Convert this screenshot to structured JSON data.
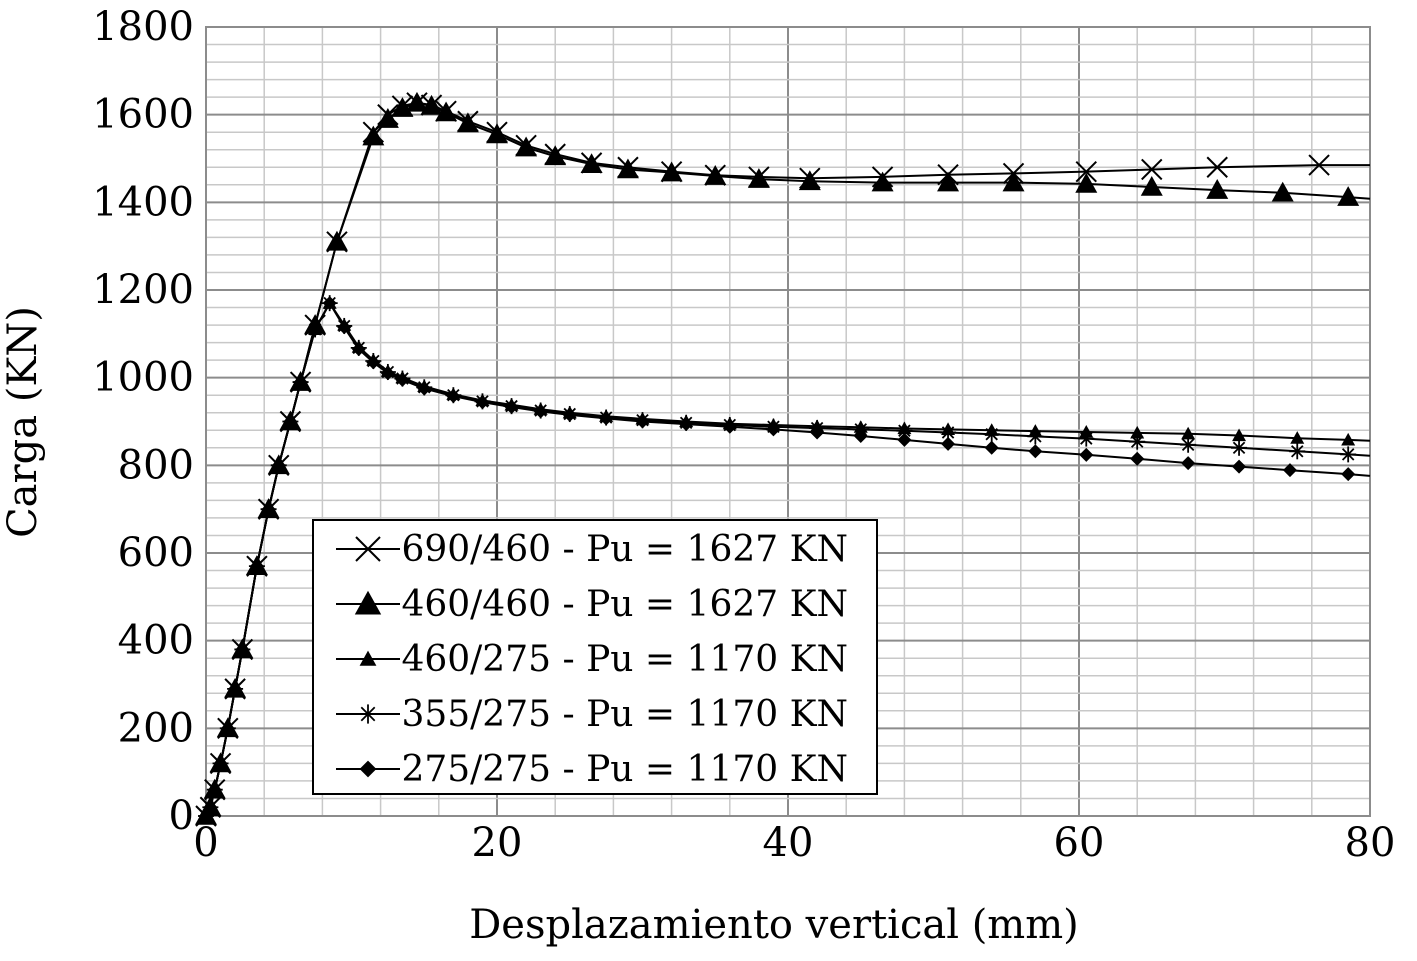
{
  "chart_data": {
    "type": "line",
    "title": "",
    "xlabel": "Desplazamiento vertical (mm)",
    "ylabel": "Carga (KN)",
    "xlim": [
      0,
      80
    ],
    "ylim": [
      0,
      1800
    ],
    "xticks": [
      0,
      20,
      40,
      60,
      80
    ],
    "yticks": [
      0,
      200,
      400,
      600,
      800,
      1000,
      1200,
      1400,
      1600,
      1800
    ],
    "grid": true,
    "legend_position": "bottom-left",
    "colors": {
      "line": "#000000",
      "grid_major": "#8c8c8c",
      "grid_minor": "#c8c8c8"
    },
    "series": [
      {
        "name": "690/460 - Pu = 1627 KN",
        "marker": "x",
        "points": [
          [
            0,
            0
          ],
          [
            0.3,
            20
          ],
          [
            0.6,
            60
          ],
          [
            1.0,
            120
          ],
          [
            1.5,
            200
          ],
          [
            2.0,
            290
          ],
          [
            2.5,
            380
          ],
          [
            3.5,
            570
          ],
          [
            4.3,
            700
          ],
          [
            5.0,
            800
          ],
          [
            5.8,
            900
          ],
          [
            6.5,
            990
          ],
          [
            7.5,
            1120
          ],
          [
            9.0,
            1310
          ],
          [
            11.5,
            1560
          ],
          [
            12.5,
            1600
          ],
          [
            13.5,
            1620
          ],
          [
            14.5,
            1627
          ],
          [
            15.5,
            1622
          ],
          [
            16.5,
            1608
          ],
          [
            18.0,
            1585
          ],
          [
            20.0,
            1560
          ],
          [
            22.0,
            1530
          ],
          [
            24.0,
            1510
          ],
          [
            26.5,
            1490
          ],
          [
            29.0,
            1480
          ],
          [
            32.0,
            1470
          ],
          [
            35.0,
            1462
          ],
          [
            38.0,
            1458
          ],
          [
            41.5,
            1455
          ],
          [
            46.5,
            1458
          ],
          [
            51.0,
            1463
          ],
          [
            55.5,
            1466
          ],
          [
            60.5,
            1470
          ],
          [
            65.0,
            1475
          ],
          [
            69.5,
            1480
          ],
          [
            76.5,
            1485
          ],
          [
            80,
            1485
          ]
        ]
      },
      {
        "name": "460/460 - Pu = 1627 KN",
        "marker": "triangle",
        "points": [
          [
            0,
            0
          ],
          [
            0.3,
            20
          ],
          [
            0.6,
            60
          ],
          [
            1.0,
            120
          ],
          [
            1.5,
            200
          ],
          [
            2.0,
            290
          ],
          [
            2.5,
            380
          ],
          [
            3.5,
            570
          ],
          [
            4.3,
            700
          ],
          [
            5.0,
            800
          ],
          [
            5.8,
            900
          ],
          [
            6.5,
            990
          ],
          [
            7.5,
            1120
          ],
          [
            9.0,
            1310
          ],
          [
            11.5,
            1550
          ],
          [
            12.5,
            1590
          ],
          [
            13.5,
            1615
          ],
          [
            14.5,
            1627
          ],
          [
            15.5,
            1620
          ],
          [
            16.5,
            1605
          ],
          [
            18.0,
            1580
          ],
          [
            20.0,
            1555
          ],
          [
            22.0,
            1525
          ],
          [
            24.0,
            1505
          ],
          [
            26.5,
            1487
          ],
          [
            29.0,
            1475
          ],
          [
            32.0,
            1468
          ],
          [
            35.0,
            1460
          ],
          [
            38.0,
            1453
          ],
          [
            41.5,
            1448
          ],
          [
            46.5,
            1445
          ],
          [
            51.0,
            1445
          ],
          [
            55.5,
            1445
          ],
          [
            60.5,
            1442
          ],
          [
            65.0,
            1435
          ],
          [
            69.5,
            1428
          ],
          [
            74.0,
            1422
          ],
          [
            78.5,
            1412
          ],
          [
            80,
            1408
          ]
        ]
      },
      {
        "name": "460/275 - Pu = 1170 KN",
        "marker": "small-triangle",
        "points": [
          [
            0,
            0
          ],
          [
            0.3,
            20
          ],
          [
            0.6,
            60
          ],
          [
            1.0,
            120
          ],
          [
            1.5,
            200
          ],
          [
            2.0,
            290
          ],
          [
            2.5,
            380
          ],
          [
            3.5,
            570
          ],
          [
            4.3,
            700
          ],
          [
            5.0,
            800
          ],
          [
            5.8,
            900
          ],
          [
            6.5,
            990
          ],
          [
            7.5,
            1110
          ],
          [
            8.5,
            1170
          ],
          [
            9.5,
            1120
          ],
          [
            10.5,
            1070
          ],
          [
            11.5,
            1040
          ],
          [
            12.5,
            1015
          ],
          [
            13.5,
            1000
          ],
          [
            15.0,
            980
          ],
          [
            17.0,
            962
          ],
          [
            19.0,
            948
          ],
          [
            21.0,
            938
          ],
          [
            23.0,
            928
          ],
          [
            25.0,
            920
          ],
          [
            27.5,
            912
          ],
          [
            30.0,
            906
          ],
          [
            33.0,
            900
          ],
          [
            36.0,
            895
          ],
          [
            39.0,
            892
          ],
          [
            42.0,
            889
          ],
          [
            45.0,
            887
          ],
          [
            48.0,
            884
          ],
          [
            51.0,
            882
          ],
          [
            54.0,
            880
          ],
          [
            57.0,
            878
          ],
          [
            60.5,
            876
          ],
          [
            64.0,
            874
          ],
          [
            67.5,
            872
          ],
          [
            71.0,
            868
          ],
          [
            75.0,
            862
          ],
          [
            78.5,
            858
          ],
          [
            80,
            856
          ]
        ]
      },
      {
        "name": "355/275 - Pu = 1170 KN",
        "marker": "asterisk",
        "points": [
          [
            0,
            0
          ],
          [
            0.3,
            20
          ],
          [
            0.6,
            60
          ],
          [
            1.0,
            120
          ],
          [
            1.5,
            200
          ],
          [
            2.0,
            290
          ],
          [
            2.5,
            380
          ],
          [
            3.5,
            570
          ],
          [
            4.3,
            700
          ],
          [
            5.0,
            800
          ],
          [
            5.8,
            900
          ],
          [
            6.5,
            990
          ],
          [
            7.5,
            1110
          ],
          [
            8.5,
            1170
          ],
          [
            9.5,
            1118
          ],
          [
            10.5,
            1068
          ],
          [
            11.5,
            1038
          ],
          [
            12.5,
            1013
          ],
          [
            13.5,
            998
          ],
          [
            15.0,
            978
          ],
          [
            17.0,
            960
          ],
          [
            19.0,
            946
          ],
          [
            21.0,
            935
          ],
          [
            23.0,
            925
          ],
          [
            25.0,
            917
          ],
          [
            27.5,
            909
          ],
          [
            30.0,
            903
          ],
          [
            33.0,
            897
          ],
          [
            36.0,
            892
          ],
          [
            39.0,
            888
          ],
          [
            42.0,
            885
          ],
          [
            45.0,
            882
          ],
          [
            48.0,
            879
          ],
          [
            51.0,
            875
          ],
          [
            54.0,
            871
          ],
          [
            57.0,
            866
          ],
          [
            60.5,
            861
          ],
          [
            64.0,
            854
          ],
          [
            67.5,
            847
          ],
          [
            71.0,
            840
          ],
          [
            75.0,
            832
          ],
          [
            78.5,
            825
          ],
          [
            80,
            822
          ]
        ]
      },
      {
        "name": "275/275 - Pu = 1170 KN",
        "marker": "diamond",
        "points": [
          [
            0,
            0
          ],
          [
            0.3,
            20
          ],
          [
            0.6,
            60
          ],
          [
            1.0,
            120
          ],
          [
            1.5,
            200
          ],
          [
            2.0,
            290
          ],
          [
            2.5,
            380
          ],
          [
            3.5,
            570
          ],
          [
            4.3,
            700
          ],
          [
            5.0,
            800
          ],
          [
            5.8,
            900
          ],
          [
            6.5,
            990
          ],
          [
            7.5,
            1110
          ],
          [
            8.5,
            1170
          ],
          [
            9.5,
            1115
          ],
          [
            10.5,
            1065
          ],
          [
            11.5,
            1035
          ],
          [
            12.5,
            1010
          ],
          [
            13.5,
            995
          ],
          [
            15.0,
            975
          ],
          [
            17.0,
            958
          ],
          [
            19.0,
            944
          ],
          [
            21.0,
            933
          ],
          [
            23.0,
            923
          ],
          [
            25.0,
            915
          ],
          [
            27.5,
            907
          ],
          [
            30.0,
            900
          ],
          [
            33.0,
            894
          ],
          [
            36.0,
            888
          ],
          [
            39.0,
            882
          ],
          [
            42.0,
            875
          ],
          [
            45.0,
            867
          ],
          [
            48.0,
            858
          ],
          [
            51.0,
            849
          ],
          [
            54.0,
            840
          ],
          [
            57.0,
            832
          ],
          [
            60.5,
            824
          ],
          [
            64.0,
            815
          ],
          [
            67.5,
            805
          ],
          [
            71.0,
            797
          ],
          [
            74.5,
            789
          ],
          [
            78.5,
            780
          ],
          [
            80,
            776
          ]
        ]
      }
    ]
  }
}
